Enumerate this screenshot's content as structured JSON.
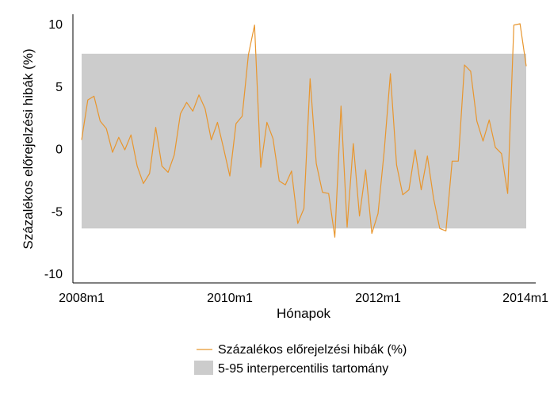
{
  "chart_data": {
    "type": "line",
    "xlabel": "Hónapok",
    "ylabel": "Százalékos előrejelzési hibák (%)",
    "ylim": [
      -10,
      10
    ],
    "yticks": [
      10,
      5,
      0,
      -5,
      -10
    ],
    "xticks": [
      {
        "label": "2008m1",
        "index": 0
      },
      {
        "label": "2010m1",
        "index": 24
      },
      {
        "label": "2012m1",
        "index": 48
      },
      {
        "label": "2014m1",
        "index": 72
      }
    ],
    "band": {
      "name": "5-95 interpercentilis tartomány",
      "low": -6.4,
      "high": 7.6,
      "color": "#cccccc"
    },
    "series": [
      {
        "name": "Százalékos előrejelzési hibák (%)",
        "color": "#e8962e",
        "values": [
          0.7,
          3.9,
          4.2,
          2.2,
          1.6,
          -0.3,
          0.9,
          -0.1,
          1.1,
          -1.4,
          -2.8,
          -2.0,
          1.7,
          -1.4,
          -1.9,
          -0.5,
          2.8,
          3.7,
          3.0,
          4.3,
          3.2,
          0.7,
          2.1,
          0.0,
          -2.2,
          2.0,
          2.6,
          7.5,
          9.9,
          -1.5,
          2.1,
          0.8,
          -2.6,
          -2.9,
          -1.8,
          -6.0,
          -4.8,
          5.6,
          -1.2,
          -3.5,
          -3.6,
          -7.1,
          3.4,
          -6.3,
          0.4,
          -5.4,
          -1.7,
          -6.8,
          -5.2,
          -0.2,
          6.0,
          -1.3,
          -3.7,
          -3.3,
          -0.1,
          -3.3,
          -0.6,
          -4.0,
          -6.4,
          -6.6,
          -1.0,
          -1.0,
          6.7,
          6.2,
          2.2,
          0.6,
          2.3,
          0.1,
          -0.4,
          -3.6,
          9.9,
          10.0,
          6.6
        ]
      }
    ],
    "legend": [
      {
        "label": "Százalékos előrejelzési hibák (%)",
        "kind": "line",
        "color": "#e8962e"
      },
      {
        "label": "5-95 interpercentilis tartomány",
        "kind": "patch",
        "color": "#cccccc"
      }
    ]
  }
}
